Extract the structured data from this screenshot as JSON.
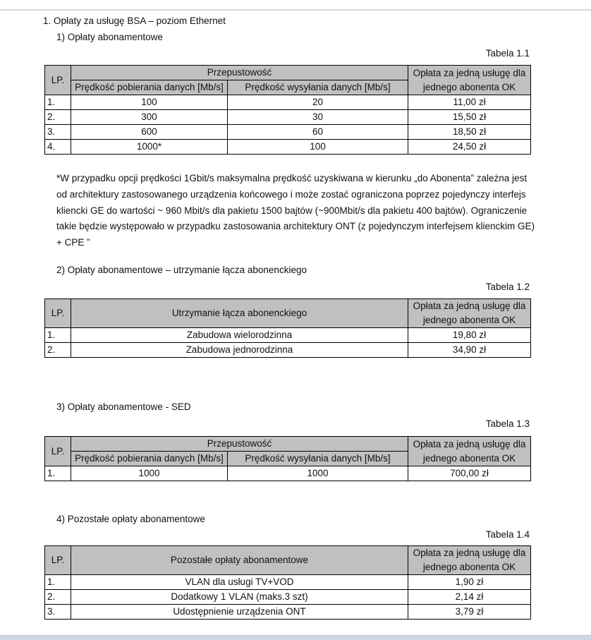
{
  "heading": "1.  Opłaty za usługę BSA – poziom Ethernet",
  "sections": [
    {
      "title": "1)   Opłaty abonamentowe",
      "caption": "Tabela 1.1",
      "headers": {
        "lp": "LP.",
        "group": "Przepustowość",
        "download": "Prędkość pobierania danych [Mb/s]",
        "upload": "Prędkość wysyłania danych [Mb/s]",
        "fee": "Opłata za jedną usługę dla jednego abonenta OK"
      },
      "rows": [
        {
          "lp": "1.",
          "download": "100",
          "upload": "20",
          "fee": "11,00 zł"
        },
        {
          "lp": "2.",
          "download": "300",
          "upload": "30",
          "fee": "15,50 zł"
        },
        {
          "lp": "3.",
          "download": "600",
          "upload": "60",
          "fee": "18,50 zł"
        },
        {
          "lp": "4.",
          "download": "1000*",
          "upload": "100",
          "fee": "24,50 zł"
        }
      ],
      "note": "*W przypadku opcji prędkości 1Gbit/s maksymalna prędkość uzyskiwana w kierunku „do Abonenta” zależna jest od architektury zastosowanego urządzenia końcowego i może zostać ograniczona poprzez pojedynczy interfejs kliencki GE do wartości ~ 960 Mbit/s dla pakietu 1500 bajtów (~900Mbit/s dla pakietu 400 bajtów). Ograniczenie takie będzie występowało w przypadku zastosowania architektury ONT (z pojedynczym interfejsem klienckim GE) + CPE ”"
    },
    {
      "title": "2)   Opłaty abonamentowe – utrzymanie łącza abonenckiego",
      "caption": "Tabela 1.2",
      "headers": {
        "lp": "LP.",
        "name": "Utrzymanie łącza abonenckiego",
        "fee": "Opłata za jedną usługę dla jednego abonenta OK"
      },
      "rows": [
        {
          "lp": "1.",
          "name": "Zabudowa wielorodzinna",
          "fee": "19,80 zł"
        },
        {
          "lp": "2.",
          "name": "Zabudowa jednorodzinna",
          "fee": "34,90 zł"
        }
      ]
    },
    {
      "title": "3)   Opłaty abonamentowe - SED",
      "caption": "Tabela 1.3",
      "headers": {
        "lp": "LP.",
        "group": "Przepustowość",
        "download": "Prędkość pobierania danych [Mb/s]",
        "upload": "Prędkość wysyłania danych [Mb/s]",
        "fee": "Opłata za jedną usługę dla jednego abonenta OK"
      },
      "rows": [
        {
          "lp": "1.",
          "download": "1000",
          "upload": "1000",
          "fee": "700,00 zł"
        }
      ]
    },
    {
      "title": "4)   Pozostałe opłaty abonamentowe",
      "caption": "Tabela 1.4",
      "headers": {
        "lp": "LP.",
        "name": "Pozostałe opłaty abonamentowe",
        "fee": "Opłata za jedną usługę dla jednego abonenta OK"
      },
      "rows": [
        {
          "lp": "1.",
          "name": "VLAN dla usługi TV+VOD",
          "fee": "1,90 zł"
        },
        {
          "lp": "2.",
          "name": "Dodatkowy 1 VLAN (maks.3 szt)",
          "fee": "2,14 zł"
        },
        {
          "lp": "3.",
          "name": "Udostępnienie  urządzenia ONT",
          "fee": "3,79 zł"
        }
      ]
    }
  ]
}
